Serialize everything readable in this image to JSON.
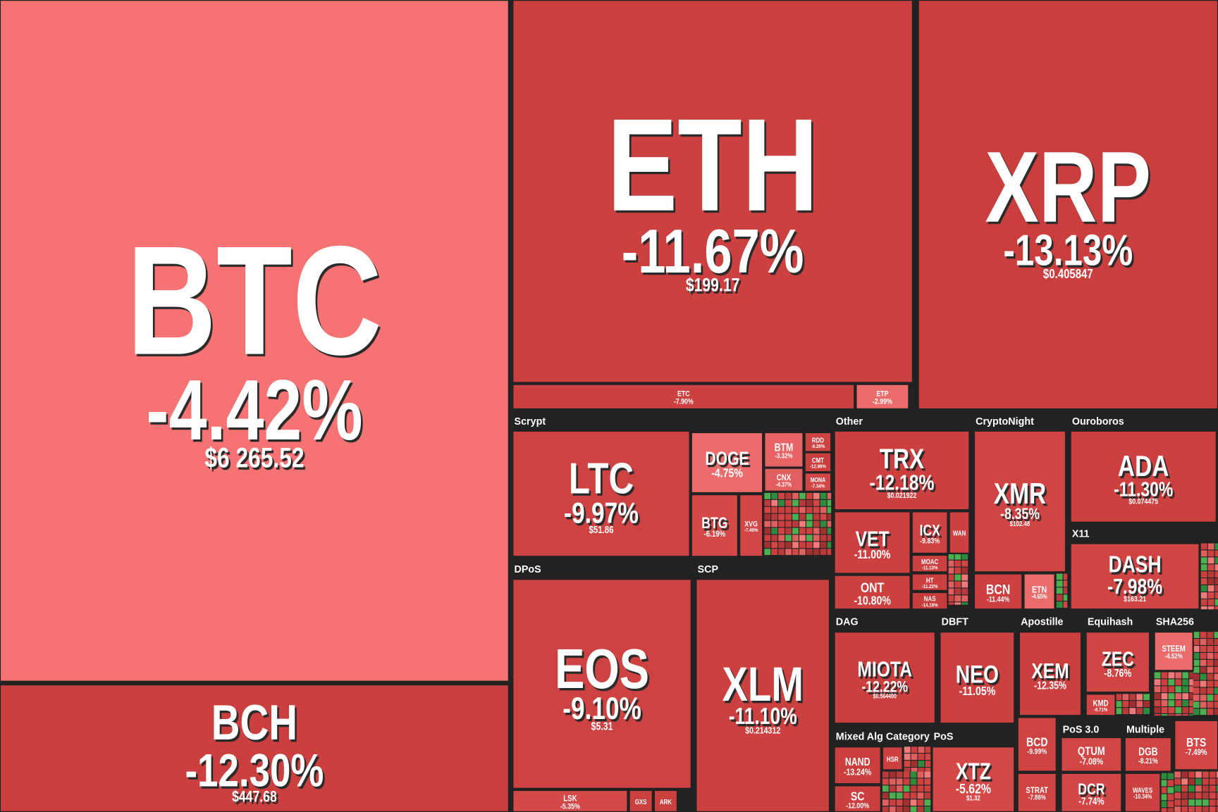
{
  "groups": [
    {
      "name": "Scrypt"
    },
    {
      "name": "DPoS"
    },
    {
      "name": "SCP"
    },
    {
      "name": "Other"
    },
    {
      "name": "CryptoNight"
    },
    {
      "name": "Ouroboros"
    },
    {
      "name": "X11"
    },
    {
      "name": "DAG"
    },
    {
      "name": "DBFT"
    },
    {
      "name": "Apostille"
    },
    {
      "name": "Equihash"
    },
    {
      "name": "SHA256"
    },
    {
      "name": "Mixed Alg Category"
    },
    {
      "name": "PoS"
    },
    {
      "name": "PoS 3.0"
    },
    {
      "name": "Multiple"
    }
  ],
  "tiles": [
    {
      "symbol": "BTC",
      "change": "-4.42%",
      "price": "$6 265.52",
      "color": "#f77373"
    },
    {
      "symbol": "BCH",
      "change": "-12.30%",
      "price": "$447.68",
      "color": "#cc3f3f"
    },
    {
      "symbol": "ETH",
      "change": "-11.67%",
      "price": "$199.17",
      "color": "#cd4040"
    },
    {
      "symbol": "ETC",
      "change": "-7.90%",
      "color": "#cd4141"
    },
    {
      "symbol": "ETP",
      "change": "-2.99%",
      "color": "#ec6c6c"
    },
    {
      "symbol": "XRP",
      "change": "-13.13%",
      "price": "$0.405847",
      "color": "#cb3e3e"
    },
    {
      "symbol": "LTC",
      "change": "-9.97%",
      "price": "$51.86",
      "color": "#cf4242"
    },
    {
      "symbol": "DOGE",
      "change": "-4.75%",
      "color": "#ec6c6c"
    },
    {
      "symbol": "BTM",
      "change": "-3.32%",
      "color": "#e86363"
    },
    {
      "symbol": "RDD",
      "change": "-9.28%",
      "color": "#cf4242"
    },
    {
      "symbol": "CMT",
      "change": "-12.98%",
      "color": "#cb3e3e"
    },
    {
      "symbol": "CNX",
      "change": "-4.37%",
      "color": "#e35f5f"
    },
    {
      "symbol": "MONA",
      "change": "-7.34%",
      "color": "#d24646"
    },
    {
      "symbol": "BTG",
      "change": "-6.19%",
      "color": "#d44848"
    },
    {
      "symbol": "XVG",
      "change": "-7.49%",
      "color": "#d24646"
    },
    {
      "symbol": "EOS",
      "change": "-9.10%",
      "price": "$5.31",
      "color": "#cf4242"
    },
    {
      "symbol": "LSK",
      "change": "-5.35%",
      "color": "#d44848"
    },
    {
      "symbol": "GXS",
      "color": "#cd4040"
    },
    {
      "symbol": "ARK",
      "color": "#cd4040"
    },
    {
      "symbol": "XLM",
      "change": "-11.10%",
      "price": "$0.214312",
      "color": "#cd4040"
    },
    {
      "symbol": "TRX",
      "change": "-12.18%",
      "price": "$0.021922",
      "color": "#cc3f3f"
    },
    {
      "symbol": "VET",
      "change": "-11.00%",
      "color": "#cd4040"
    },
    {
      "symbol": "ONT",
      "change": "-10.80%",
      "color": "#cd4040"
    },
    {
      "symbol": "ICX",
      "change": "-9.83%",
      "color": "#cf4242"
    },
    {
      "symbol": "WAN",
      "color": "#cd4040"
    },
    {
      "symbol": "MOAC",
      "change": "-11.13%",
      "color": "#cd4040"
    },
    {
      "symbol": "HT",
      "change": "-11.22%",
      "color": "#cd4040"
    },
    {
      "symbol": "NAS",
      "change": "-14.16%",
      "color": "#c93c3c"
    },
    {
      "symbol": "XMR",
      "change": "-8.35%",
      "price": "$102.48",
      "color": "#d04444"
    },
    {
      "symbol": "BCN",
      "change": "-11.44%",
      "color": "#cd4040"
    },
    {
      "symbol": "ETN",
      "change": "-4.65%",
      "color": "#ec6c6c"
    },
    {
      "symbol": "ADA",
      "change": "-11.30%",
      "price": "$0.074475",
      "color": "#cd4040"
    },
    {
      "symbol": "DASH",
      "change": "-7.98%",
      "price": "$163.21",
      "color": "#d04444"
    },
    {
      "symbol": "MIOTA",
      "change": "-12.22%",
      "price": "$0.564400",
      "color": "#cc3f3f"
    },
    {
      "symbol": "NEO",
      "change": "-11.05%",
      "color": "#cd4040"
    },
    {
      "symbol": "XEM",
      "change": "-12.35%",
      "color": "#cc3f3f"
    },
    {
      "symbol": "ZEC",
      "change": "-8.76%",
      "color": "#d04444"
    },
    {
      "symbol": "KMD",
      "change": "-8.71%",
      "color": "#d04444"
    },
    {
      "symbol": "STEEM",
      "change": "-4.52%",
      "color": "#ec6c6c"
    },
    {
      "symbol": "NAND",
      "change": "-13.24%",
      "color": "#cb3e3e"
    },
    {
      "symbol": "SC",
      "change": "-12.00%",
      "color": "#cc3f3f"
    },
    {
      "symbol": "HSR",
      "color": "#cd4040"
    },
    {
      "symbol": "XTZ",
      "change": "-5.62%",
      "price": "$1.32",
      "color": "#d44848"
    },
    {
      "symbol": "BCD",
      "change": "-9.99%",
      "color": "#cf4242"
    },
    {
      "symbol": "STRAT",
      "change": "-7.86%",
      "color": "#d04444"
    },
    {
      "symbol": "QTUM",
      "change": "-7.08%",
      "color": "#d24646"
    },
    {
      "symbol": "DCR",
      "change": "-7.74%",
      "color": "#d24646"
    },
    {
      "symbol": "DGB",
      "change": "-8.21%",
      "color": "#d04444"
    },
    {
      "symbol": "WAVES",
      "change": "-10.34%",
      "color": "#cd4040"
    },
    {
      "symbol": "BTS",
      "change": "-7.49%",
      "color": "#d24646"
    }
  ]
}
